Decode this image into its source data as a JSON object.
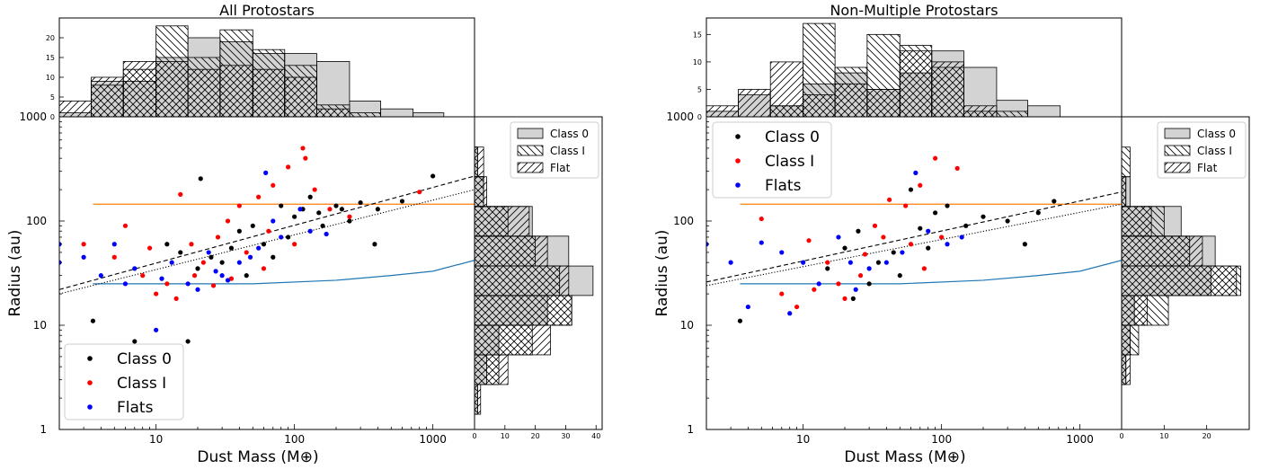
{
  "chart_data": [
    {
      "type": "scatter",
      "title": "All Protostars",
      "xlabel": "Dust Mass (M⊕)",
      "ylabel": "Radius (au)",
      "x_scale": "log",
      "y_scale": "log",
      "xlim": [
        2,
        2000
      ],
      "ylim": [
        1,
        1000
      ],
      "x_ticks": [
        10,
        100,
        1000
      ],
      "x_tick_labels": [
        "10",
        "100",
        "1000"
      ],
      "y_ticks": [
        1,
        10,
        100,
        1000
      ],
      "y_tick_labels": [
        "1",
        "10",
        "100",
        "1000"
      ],
      "legend_position": "lower-left",
      "series": [
        {
          "name": "Class 0",
          "color": "#000000",
          "points": [
            [
              3.5,
              11
            ],
            [
              7,
              7
            ],
            [
              17,
              7
            ],
            [
              21,
              255
            ],
            [
              115,
              130
            ],
            [
              1000,
              270
            ],
            [
              380,
              60
            ],
            [
              200,
              140
            ],
            [
              250,
              100
            ],
            [
              150,
              120
            ],
            [
              80,
              140
            ],
            [
              40,
              80
            ],
            [
              30,
              40
            ],
            [
              60,
              60
            ],
            [
              12,
              60
            ],
            [
              25,
              45
            ],
            [
              50,
              90
            ],
            [
              90,
              70
            ],
            [
              130,
              170
            ],
            [
              300,
              150
            ],
            [
              600,
              155
            ],
            [
              400,
              130
            ],
            [
              35,
              55
            ],
            [
              45,
              30
            ],
            [
              20,
              35
            ],
            [
              70,
              45
            ],
            [
              15,
              50
            ],
            [
              100,
              110
            ],
            [
              160,
              90
            ],
            [
              220,
              130
            ]
          ]
        },
        {
          "name": "Class I",
          "color": "#ff0000",
          "points": [
            [
              3,
              60
            ],
            [
              5,
              45
            ],
            [
              6,
              90
            ],
            [
              8,
              30
            ],
            [
              10,
              20
            ],
            [
              12,
              25
            ],
            [
              15,
              180
            ],
            [
              18,
              60
            ],
            [
              22,
              40
            ],
            [
              28,
              70
            ],
            [
              33,
              100
            ],
            [
              40,
              140
            ],
            [
              55,
              170
            ],
            [
              70,
              220
            ],
            [
              90,
              330
            ],
            [
              115,
              500
            ],
            [
              140,
              200
            ],
            [
              180,
              130
            ],
            [
              250,
              110
            ],
            [
              800,
              190
            ],
            [
              120,
              400
            ],
            [
              26,
              24
            ],
            [
              45,
              50
            ],
            [
              65,
              80
            ],
            [
              100,
              60
            ],
            [
              14,
              18
            ],
            [
              19,
              30
            ],
            [
              9,
              55
            ],
            [
              60,
              35
            ],
            [
              35,
              28
            ]
          ]
        },
        {
          "name": "Flats",
          "color": "#0000ff",
          "points": [
            [
              2,
              60
            ],
            [
              2,
              40
            ],
            [
              3,
              45
            ],
            [
              4,
              30
            ],
            [
              5,
              60
            ],
            [
              7,
              35
            ],
            [
              10,
              9
            ],
            [
              13,
              40
            ],
            [
              17,
              25
            ],
            [
              24,
              50
            ],
            [
              30,
              30
            ],
            [
              40,
              40
            ],
            [
              55,
              55
            ],
            [
              62,
              290
            ],
            [
              70,
              100
            ],
            [
              80,
              70
            ],
            [
              110,
              130
            ],
            [
              130,
              80
            ],
            [
              170,
              75
            ],
            [
              20,
              22
            ],
            [
              27,
              33
            ],
            [
              48,
              45
            ],
            [
              33,
              27
            ],
            [
              11,
              28
            ],
            [
              6,
              25
            ]
          ]
        }
      ],
      "lines": [
        {
          "name": "orange",
          "color": "#ff7f0e",
          "style": "solid",
          "points": [
            [
              3.5,
              145
            ],
            [
              2000,
              145
            ]
          ]
        },
        {
          "name": "blue",
          "color": "#1f77b4",
          "style": "solid",
          "points": [
            [
              3.5,
              25
            ],
            [
              50,
              25
            ],
            [
              200,
              27
            ],
            [
              500,
              30
            ],
            [
              1000,
              33
            ],
            [
              2000,
              42
            ]
          ]
        },
        {
          "name": "dashed",
          "color": "#000000",
          "style": "dashed",
          "points": [
            [
              2,
              22
            ],
            [
              2000,
              270
            ]
          ]
        },
        {
          "name": "dotted",
          "color": "#000000",
          "style": "dotted",
          "points": [
            [
              2,
              20
            ],
            [
              2000,
              200
            ]
          ]
        }
      ],
      "top_histogram": {
        "ylim": [
          0,
          25
        ],
        "y_ticks": [
          0,
          5,
          10,
          15,
          20
        ],
        "y_tick_labels": [
          "0",
          "5",
          "10",
          "15",
          "20"
        ],
        "bin_edges": [
          2,
          3.4,
          5.8,
          10,
          17,
          29,
          50,
          85,
          145,
          250,
          420,
          720,
          1200
        ],
        "class0": [
          1,
          9,
          9,
          15,
          20,
          19,
          16,
          16,
          14,
          4,
          2,
          1
        ],
        "classI": [
          0,
          8,
          12,
          23,
          15,
          22,
          17,
          13,
          3,
          1,
          0,
          0
        ],
        "flat": [
          4,
          10,
          14,
          14,
          12,
          13,
          12,
          10,
          2,
          0,
          0,
          0
        ]
      },
      "right_histogram": {
        "xlim": [
          0,
          42
        ],
        "x_ticks": [
          0,
          10,
          20,
          30,
          40
        ],
        "x_tick_labels": [
          "0",
          "10",
          "20",
          "30",
          "40"
        ],
        "bin_edges": [
          1.4,
          2.7,
          5.2,
          10,
          19.3,
          37,
          71.6,
          138,
          266,
          512
        ],
        "class0": [
          1,
          4,
          8,
          24,
          39,
          31,
          19,
          3,
          1
        ],
        "classI": [
          1,
          8,
          19,
          32,
          28,
          20,
          11,
          3,
          1
        ],
        "flat": [
          2,
          11,
          25,
          32,
          31,
          24,
          18,
          4,
          3
        ]
      },
      "hist_legend_entries": [
        "Class 0",
        "Class I",
        "Flat"
      ],
      "scatter_legend_entries": [
        "Class 0",
        "Class I",
        "Flats"
      ]
    },
    {
      "type": "scatter",
      "title": "Non-Multiple Protostars",
      "xlabel": "Dust Mass (M⊕)",
      "ylabel": "Radius (au)",
      "x_scale": "log",
      "y_scale": "log",
      "xlim": [
        2,
        2000
      ],
      "ylim": [
        1,
        1000
      ],
      "x_ticks": [
        10,
        100,
        1000
      ],
      "x_tick_labels": [
        "10",
        "100",
        "1000"
      ],
      "y_ticks": [
        1,
        10,
        100,
        1000
      ],
      "y_tick_labels": [
        "1",
        "10",
        "100",
        "1000"
      ],
      "legend_position": "upper-left",
      "series": [
        {
          "name": "Class 0",
          "color": "#000000",
          "points": [
            [
              3.5,
              11
            ],
            [
              23,
              18
            ],
            [
              400,
              60
            ],
            [
              650,
              155
            ],
            [
              300,
              100
            ],
            [
              150,
              90
            ],
            [
              90,
              120
            ],
            [
              60,
              200
            ],
            [
              45,
              50
            ],
            [
              35,
              40
            ],
            [
              30,
              25
            ],
            [
              25,
              80
            ],
            [
              80,
              55
            ],
            [
              110,
              140
            ],
            [
              200,
              110
            ],
            [
              500,
              120
            ],
            [
              20,
              55
            ],
            [
              15,
              35
            ],
            [
              50,
              30
            ],
            [
              70,
              85
            ]
          ]
        },
        {
          "name": "Class I",
          "color": "#ff0000",
          "points": [
            [
              5,
              105
            ],
            [
              7,
              20
            ],
            [
              9,
              15
            ],
            [
              11,
              65
            ],
            [
              15,
              40
            ],
            [
              20,
              18
            ],
            [
              26,
              30
            ],
            [
              33,
              90
            ],
            [
              42,
              160
            ],
            [
              55,
              140
            ],
            [
              70,
              220
            ],
            [
              90,
              400
            ],
            [
              130,
              320
            ],
            [
              18,
              25
            ],
            [
              28,
              48
            ],
            [
              60,
              60
            ],
            [
              100,
              70
            ],
            [
              12,
              22
            ],
            [
              38,
              70
            ],
            [
              75,
              35
            ]
          ]
        },
        {
          "name": "Flats",
          "color": "#0000ff",
          "points": [
            [
              2,
              60
            ],
            [
              3,
              40
            ],
            [
              4,
              15
            ],
            [
              5,
              62
            ],
            [
              7,
              50
            ],
            [
              8,
              13
            ],
            [
              10,
              40
            ],
            [
              13,
              25
            ],
            [
              18,
              70
            ],
            [
              24,
              22
            ],
            [
              30,
              35
            ],
            [
              40,
              40
            ],
            [
              52,
              50
            ],
            [
              65,
              290
            ],
            [
              80,
              80
            ],
            [
              110,
              60
            ],
            [
              140,
              70
            ],
            [
              22,
              40
            ]
          ]
        }
      ],
      "lines": [
        {
          "name": "orange",
          "color": "#ff7f0e",
          "style": "solid",
          "points": [
            [
              3.5,
              145
            ],
            [
              2000,
              145
            ]
          ]
        },
        {
          "name": "blue",
          "color": "#1f77b4",
          "style": "solid",
          "points": [
            [
              3.5,
              25
            ],
            [
              50,
              25
            ],
            [
              200,
              27
            ],
            [
              500,
              30
            ],
            [
              1000,
              33
            ],
            [
              2000,
              42
            ]
          ]
        },
        {
          "name": "dashed",
          "color": "#000000",
          "style": "dashed",
          "points": [
            [
              2,
              26
            ],
            [
              2000,
              190
            ]
          ]
        },
        {
          "name": "dotted",
          "color": "#000000",
          "style": "dotted",
          "points": [
            [
              2,
              24
            ],
            [
              2000,
              145
            ]
          ]
        }
      ],
      "top_histogram": {
        "ylim": [
          0,
          18
        ],
        "y_ticks": [
          0,
          5,
          10,
          15
        ],
        "y_tick_labels": [
          "0",
          "5",
          "10",
          "15"
        ],
        "bin_edges": [
          2,
          3.4,
          5.8,
          10,
          17,
          29,
          50,
          85,
          145,
          250,
          420,
          720,
          1200
        ],
        "class0": [
          1,
          4,
          2,
          6,
          8,
          5,
          8,
          12,
          9,
          3,
          2,
          0
        ],
        "classI": [
          0,
          0,
          2,
          17,
          9,
          15,
          13,
          9,
          1,
          1,
          0,
          0
        ],
        "flat": [
          2,
          5,
          10,
          4,
          6,
          5,
          12,
          10,
          2,
          0,
          0,
          0
        ]
      },
      "right_histogram": {
        "xlim": [
          0,
          30
        ],
        "x_ticks": [
          0,
          10,
          20
        ],
        "x_tick_labels": [
          "0",
          "10",
          "20"
        ],
        "bin_edges": [
          1.4,
          2.7,
          5.2,
          10,
          19.3,
          37,
          71.6,
          138,
          266,
          512
        ],
        "class0": [
          0,
          1,
          2,
          3,
          21,
          22,
          14,
          2,
          0
        ],
        "classI": [
          0,
          1,
          4,
          11,
          28,
          16,
          10,
          1,
          2
        ],
        "flat": [
          0,
          2,
          2,
          6,
          27,
          19,
          7,
          1,
          0
        ]
      },
      "hist_legend_entries": [
        "Class 0",
        "Class I",
        "Flat"
      ],
      "scatter_legend_entries": [
        "Class 0",
        "Class I",
        "Flats"
      ]
    }
  ]
}
